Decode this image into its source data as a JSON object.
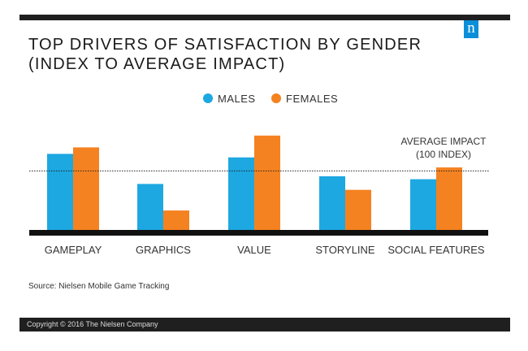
{
  "title_line1": "TOP DRIVERS OF SATISFACTION BY GENDER",
  "title_line2": "(INDEX TO AVERAGE IMPACT)",
  "logo_letter": "n",
  "source": "Source: Nielsen Mobile Game Tracking",
  "copyright": "Copyright © 2016 The Nielsen Company",
  "colors": {
    "males": "#1da8e1",
    "females": "#f58220",
    "baseline": "#111111",
    "bars_bg": "#1f1f1f",
    "logo": "#0b8fd8"
  },
  "chart_data": {
    "type": "bar",
    "title": "TOP DRIVERS OF SATISFACTION BY GENDER (INDEX TO AVERAGE IMPACT)",
    "categories": [
      "GAMEPLAY",
      "GRAPHICS",
      "VALUE",
      "STORYLINE",
      "SOCIAL FEATURES"
    ],
    "series": [
      {
        "name": "MALES",
        "values": [
          129,
          78,
          123,
          91,
          86
        ]
      },
      {
        "name": "FEMALES",
        "values": [
          140,
          33,
          160,
          68,
          106
        ]
      }
    ],
    "reference_line": {
      "value": 100,
      "label_line1": "AVERAGE IMPACT",
      "label_line2": "(100 INDEX)"
    },
    "legend_position": "top",
    "ylim": [
      0,
      165
    ],
    "grid": false
  }
}
